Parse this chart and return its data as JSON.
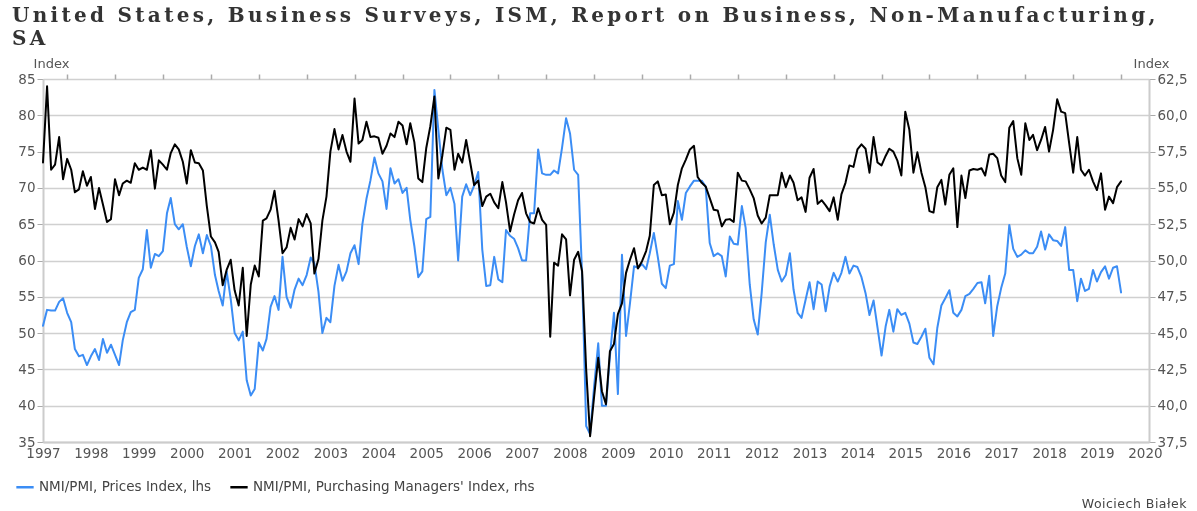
{
  "chart_data": {
    "type": "line",
    "title": "United States, Business Surveys, ISM, Report on Business, Non-Manufacturing, SA",
    "ylabel": "Index",
    "y2label": "Index",
    "annotations": [
      "Woiciech Białek"
    ],
    "x": [
      "1997-07",
      "1997-08",
      "1997-09",
      "1997-10",
      "1997-11",
      "1997-12",
      "1998-01",
      "1998-02",
      "1998-03",
      "1998-04",
      "1998-05",
      "1998-06",
      "1998-07",
      "1998-08",
      "1998-09",
      "1998-10",
      "1998-11",
      "1998-12",
      "1999-01",
      "1999-02",
      "1999-03",
      "1999-04",
      "1999-05",
      "1999-06",
      "1999-07",
      "1999-08",
      "1999-09",
      "1999-10",
      "1999-11",
      "1999-12",
      "2000-01",
      "2000-02",
      "2000-03",
      "2000-04",
      "2000-05",
      "2000-06",
      "2000-07",
      "2000-08",
      "2000-09",
      "2000-10",
      "2000-11",
      "2000-12",
      "2001-01",
      "2001-02",
      "2001-03",
      "2001-04",
      "2001-05",
      "2001-06",
      "2001-07",
      "2001-08",
      "2001-09",
      "2001-10",
      "2001-11",
      "2001-12",
      "2002-01",
      "2002-02",
      "2002-03",
      "2002-04",
      "2002-05",
      "2002-06",
      "2002-07",
      "2002-08",
      "2002-09",
      "2002-10",
      "2002-11",
      "2002-12",
      "2003-01",
      "2003-02",
      "2003-03",
      "2003-04",
      "2003-05",
      "2003-06",
      "2003-07",
      "2003-08",
      "2003-09",
      "2003-10",
      "2003-11",
      "2003-12",
      "2004-01",
      "2004-02",
      "2004-03",
      "2004-04",
      "2004-05",
      "2004-06",
      "2004-07",
      "2004-08",
      "2004-09",
      "2004-10",
      "2004-11",
      "2004-12",
      "2005-01",
      "2005-02",
      "2005-03",
      "2005-04",
      "2005-05",
      "2005-06",
      "2005-07",
      "2005-08",
      "2005-09",
      "2005-10",
      "2005-11",
      "2005-12",
      "2006-01",
      "2006-02",
      "2006-03",
      "2006-04",
      "2006-05",
      "2006-06",
      "2006-07",
      "2006-08",
      "2006-09",
      "2006-10",
      "2006-11",
      "2006-12",
      "2007-01",
      "2007-02",
      "2007-03",
      "2007-04",
      "2007-05",
      "2007-06",
      "2007-07",
      "2007-08",
      "2007-09",
      "2007-10",
      "2007-11",
      "2007-12",
      "2008-01",
      "2008-02",
      "2008-03",
      "2008-04",
      "2008-05",
      "2008-06",
      "2008-07",
      "2008-08",
      "2008-09",
      "2008-10",
      "2008-11",
      "2008-12",
      "2009-01",
      "2009-02",
      "2009-03",
      "2009-04",
      "2009-05",
      "2009-06",
      "2009-07",
      "2009-08",
      "2009-09",
      "2009-10",
      "2009-11",
      "2009-12",
      "2010-01",
      "2010-02",
      "2010-03",
      "2010-04",
      "2010-05",
      "2010-06",
      "2010-07",
      "2010-08",
      "2010-09",
      "2010-10",
      "2010-11",
      "2010-12",
      "2011-01",
      "2011-02",
      "2011-03",
      "2011-04",
      "2011-05",
      "2011-06",
      "2011-07",
      "2011-08",
      "2011-09",
      "2011-10",
      "2011-11",
      "2011-12",
      "2012-01",
      "2012-02",
      "2012-03",
      "2012-04",
      "2012-05",
      "2012-06",
      "2012-07",
      "2012-08",
      "2012-09",
      "2012-10",
      "2012-11",
      "2012-12",
      "2013-01",
      "2013-02",
      "2013-03",
      "2013-04",
      "2013-05",
      "2013-06",
      "2013-07",
      "2013-08",
      "2013-09",
      "2013-10",
      "2013-11",
      "2013-12",
      "2014-01",
      "2014-02",
      "2014-03",
      "2014-04",
      "2014-05",
      "2014-06",
      "2014-07",
      "2014-08",
      "2014-09",
      "2014-10",
      "2014-11",
      "2014-12",
      "2015-01",
      "2015-02",
      "2015-03",
      "2015-04",
      "2015-05",
      "2015-06",
      "2015-07",
      "2015-08",
      "2015-09",
      "2015-10",
      "2015-11",
      "2015-12",
      "2016-01",
      "2016-02",
      "2016-03",
      "2016-04",
      "2016-05",
      "2016-06",
      "2016-07",
      "2016-08",
      "2016-09",
      "2016-10",
      "2016-11",
      "2016-12",
      "2017-01",
      "2017-02",
      "2017-03",
      "2017-04",
      "2017-05",
      "2017-06",
      "2017-07",
      "2017-08",
      "2017-09",
      "2017-10",
      "2017-11",
      "2017-12",
      "2018-01",
      "2018-02",
      "2018-03",
      "2018-04",
      "2018-05",
      "2018-06",
      "2018-07",
      "2018-08",
      "2018-09",
      "2018-10",
      "2018-11",
      "2018-12",
      "2019-01",
      "2019-02",
      "2019-03",
      "2019-04",
      "2019-05",
      "2019-06",
      "2019-07",
      "2019-08",
      "2019-09",
      "2019-10",
      "2019-11",
      "2019-12",
      "2020-01"
    ],
    "series": [
      {
        "name": "NMI/PMI, Prices Index, lhs",
        "color": "#3b8df5",
        "values": [
          51,
          53.2,
          53.1,
          53.1,
          54.3,
          54.8,
          52.8,
          51.5,
          47.8,
          46.8,
          47.0,
          45.6,
          46.8,
          47.8,
          46.3,
          49.2,
          47.3,
          48.4,
          47,
          45.6,
          49,
          51.5,
          52.9,
          53.2,
          57.6,
          58.8,
          64.2,
          59,
          60.9,
          60.6,
          61.3,
          66.5,
          68.6,
          65,
          64.3,
          65,
          61.9,
          59.2,
          62,
          63.6,
          61,
          63.5,
          62,
          58,
          55.8,
          53.8,
          58.5,
          54.7,
          50,
          49,
          50.2,
          43.5,
          41.4,
          42.3,
          48.7,
          47.6,
          49.2,
          53.6,
          55.1,
          53.2,
          60.5,
          55,
          53.5,
          56,
          57.5,
          56.6,
          58,
          60.4,
          59.6,
          55.7,
          50,
          52.1,
          51.5,
          56.5,
          59.4,
          57.2,
          58.5,
          61,
          62.1,
          59.5,
          65,
          68.5,
          71,
          74.2,
          72,
          70.9,
          67.1,
          72.7,
          70.6,
          71.2,
          69.3,
          70,
          65.6,
          62,
          57.7,
          58.5,
          65.7,
          66,
          83.5,
          78,
          72.5,
          69,
          70,
          67.8,
          60,
          68.8,
          70.5,
          69,
          70.3,
          72.2,
          61.5,
          56.5,
          56.6,
          60.5,
          57.4,
          57,
          64.2,
          63.4,
          63,
          61.7,
          60,
          60,
          66.5,
          66.5,
          75.3,
          72,
          71.8,
          71.8,
          72.4,
          72,
          75.5,
          79.6,
          77.5,
          72.5,
          71.8,
          58,
          37.2,
          36.1,
          42.7,
          48.6,
          40,
          40,
          46.8,
          52.8,
          41.6,
          60.8,
          49.6,
          54.1,
          59.2,
          59,
          59.5,
          58.8,
          61,
          63.8,
          60.5,
          56.8,
          56.2,
          59.3,
          59.5,
          68.2,
          65.6,
          69.3,
          70.2,
          71,
          71,
          71,
          70.2,
          62.4,
          60.6,
          61,
          60.6,
          57.8,
          63.3,
          62.3,
          62.2,
          67.5,
          64.5,
          56.7,
          51.9,
          49.8,
          55.5,
          62.5,
          66.3,
          62.2,
          58.7,
          57.1,
          58,
          61,
          56,
          52.8,
          52.1,
          54.6,
          57,
          53.3,
          57.1,
          56.7,
          53,
          56.4,
          58.3,
          57.1,
          58.3,
          60.5,
          58.2,
          59.3,
          59.1,
          57.7,
          55.5,
          52.5,
          54.5,
          50.8,
          46.9,
          50.9,
          53.2,
          50.2,
          53.3,
          52.5,
          52.8,
          51.3,
          48.7,
          48.5,
          49.5,
          50.6,
          46.6,
          45.7,
          50.7,
          53.8,
          54.8,
          55.9,
          52.8,
          52.3,
          53.2,
          55.1,
          55.4,
          56.1,
          56.9,
          57,
          54.1,
          57.9,
          49.6,
          53.7,
          56.2,
          58.2,
          64.9,
          61.6,
          60.5,
          60.8,
          61.4,
          61,
          61,
          61.9,
          64,
          61.5,
          63.6,
          62.8,
          62.7,
          62,
          64.6,
          58.7,
          58.7,
          54.4,
          57.5,
          55.8,
          56.1,
          58.7,
          57.1,
          58.4,
          59.2,
          57.5,
          59,
          59.2,
          55.6
        ]
      },
      {
        "name": "NMI/PMI, Purchasing Managers' Index, rhs",
        "color": "#000000",
        "axis": "y2",
        "values": [
          56.75,
          62,
          56.25,
          56.6,
          58.5,
          55.6,
          57,
          56.25,
          54.7,
          54.9,
          56.15,
          55.15,
          55.75,
          53.55,
          55,
          53.85,
          52.65,
          52.85,
          55.6,
          54.5,
          55.3,
          55.5,
          55.35,
          56.7,
          56.25,
          56.4,
          56.25,
          57.6,
          54.95,
          56.9,
          56.6,
          56.25,
          57.4,
          58,
          57.65,
          56.8,
          55.3,
          57.6,
          56.75,
          56.7,
          56.2,
          53.75,
          51.65,
          51.25,
          50.6,
          48.3,
          49.35,
          50.05,
          47.95,
          46.9,
          49.5,
          44.8,
          48.35,
          49.65,
          48.9,
          52.75,
          52.9,
          53.5,
          54.8,
          52.75,
          50.5,
          50.9,
          52.25,
          51.45,
          52.85,
          52.35,
          53.2,
          52.55,
          49.1,
          50.1,
          52.75,
          54.4,
          57.5,
          59.05,
          57.65,
          58.65,
          57.5,
          56.8,
          61.15,
          58.05,
          58.3,
          59.55,
          58.5,
          58.55,
          58.45,
          57.35,
          57.9,
          58.75,
          58.5,
          59.55,
          59.3,
          58,
          59.45,
          58.15,
          55.65,
          55.4,
          57.75,
          59.25,
          61.3,
          55.65,
          57.25,
          59.15,
          59,
          56.25,
          57.35,
          56.75,
          58.3,
          56.75,
          55.2,
          55.5,
          53.75,
          54.4,
          54.6,
          54,
          53.6,
          55.4,
          54,
          52,
          53.15,
          54.15,
          54.65,
          53.25,
          52.65,
          52.55,
          53.6,
          52.8,
          52.45,
          44.75,
          49.85,
          49.65,
          51.8,
          51.45,
          47.6,
          50.05,
          50.6,
          49.25,
          42.5,
          37.9,
          40.65,
          43.3,
          41,
          40.1,
          43.75,
          44.25,
          46.3,
          47.05,
          49.15,
          50.05,
          50.85,
          49.45,
          49.95,
          50.65,
          51.7,
          55.2,
          55.45,
          54.5,
          54.55,
          52.5,
          53.3,
          55.2,
          56.35,
          56.95,
          57.65,
          57.9,
          55.75,
          55.35,
          55.1,
          54.3,
          53.5,
          53.45,
          52.35,
          52.8,
          52.85,
          52.65,
          56.05,
          55.5,
          55.45,
          54.9,
          54.3,
          53.1,
          52.55,
          52.95,
          54.5,
          54.5,
          54.5,
          56.05,
          55.05,
          55.85,
          55.35,
          54.15,
          54.35,
          53.35,
          55.7,
          56.3,
          53.9,
          54.15,
          53.8,
          53.4,
          54.35,
          52.8,
          54.55,
          55.35,
          56.55,
          56.45,
          57.65,
          58,
          57.7,
          56.05,
          58.5,
          56.75,
          56.55,
          57.2,
          57.7,
          57.5,
          56.9,
          55.85,
          60.25,
          59,
          56.05,
          57.45,
          56.05,
          55.05,
          53.4,
          53.3,
          55.05,
          55.55,
          53.85,
          55.9,
          56.35,
          52.3,
          55.85,
          54.3,
          56.2,
          56.3,
          56.25,
          56.35,
          55.85,
          57.3,
          57.35,
          57.05,
          55.85,
          55.4,
          59.15,
          59.6,
          57.05,
          55.9,
          59.45,
          58.3,
          58.65,
          57.6,
          58.3,
          59.2,
          57.5,
          59,
          61.1,
          60.25,
          60.15,
          58.1,
          56.05,
          58.5,
          56.25,
          55.85,
          56.25,
          55.45,
          54.85,
          56,
          53.5,
          54.4,
          53.95,
          55.05,
          55.45
        ]
      }
    ],
    "xlim": [
      "1997-07",
      "2020-08"
    ],
    "xticks": [
      {
        "value": "1997-07",
        "label": "1997"
      },
      {
        "value": "1998-01",
        "label": null
      },
      {
        "value": "1998-07",
        "label": "1998"
      },
      {
        "value": "1999-01",
        "label": null
      },
      {
        "value": "1999-07",
        "label": "1999"
      },
      {
        "value": "2000-01",
        "label": null
      },
      {
        "value": "2000-07",
        "label": "2000"
      },
      {
        "value": "2001-01",
        "label": null
      },
      {
        "value": "2001-07",
        "label": "2001"
      },
      {
        "value": "2002-01",
        "label": null
      },
      {
        "value": "2002-07",
        "label": "2002"
      },
      {
        "value": "2003-01",
        "label": null
      },
      {
        "value": "2003-07",
        "label": "2003"
      },
      {
        "value": "2004-01",
        "label": null
      },
      {
        "value": "2004-07",
        "label": "2004"
      },
      {
        "value": "2005-01",
        "label": null
      },
      {
        "value": "2005-07",
        "label": "2005"
      },
      {
        "value": "2006-01",
        "label": null
      },
      {
        "value": "2006-07",
        "label": "2006"
      },
      {
        "value": "2007-01",
        "label": null
      },
      {
        "value": "2007-07",
        "label": "2007"
      },
      {
        "value": "2008-01",
        "label": null
      },
      {
        "value": "2008-07",
        "label": "2008"
      },
      {
        "value": "2009-01",
        "label": null
      },
      {
        "value": "2009-07",
        "label": "2009"
      },
      {
        "value": "2010-01",
        "label": null
      },
      {
        "value": "2010-07",
        "label": "2010"
      },
      {
        "value": "2011-01",
        "label": null
      },
      {
        "value": "2011-07",
        "label": "2011"
      },
      {
        "value": "2012-01",
        "label": null
      },
      {
        "value": "2012-07",
        "label": "2012"
      },
      {
        "value": "2013-01",
        "label": null
      },
      {
        "value": "2013-07",
        "label": "2013"
      },
      {
        "value": "2014-01",
        "label": null
      },
      {
        "value": "2014-07",
        "label": "2014"
      },
      {
        "value": "2015-01",
        "label": null
      },
      {
        "value": "2015-07",
        "label": "2015"
      },
      {
        "value": "2016-01",
        "label": null
      },
      {
        "value": "2016-07",
        "label": "2016"
      },
      {
        "value": "2017-01",
        "label": null
      },
      {
        "value": "2017-07",
        "label": "2017"
      },
      {
        "value": "2018-01",
        "label": null
      },
      {
        "value": "2018-07",
        "label": "2018"
      },
      {
        "value": "2019-01",
        "label": null
      },
      {
        "value": "2019-07",
        "label": "2019"
      },
      {
        "value": "2020-01",
        "label": null
      },
      {
        "value": "2020-07",
        "label": "2020"
      }
    ],
    "ylim": [
      35,
      85
    ],
    "yticks": [
      35,
      40,
      45,
      50,
      55,
      60,
      65,
      70,
      75,
      80,
      85
    ],
    "y2lim": [
      37.5,
      62.5
    ],
    "y2ticks": [
      {
        "value": 37.5,
        "label": "37,5"
      },
      {
        "value": 40,
        "label": "40,0"
      },
      {
        "value": 42.5,
        "label": "42,5"
      },
      {
        "value": 45,
        "label": "45,0"
      },
      {
        "value": 47.5,
        "label": "47,5"
      },
      {
        "value": 50,
        "label": "50,0"
      },
      {
        "value": 52.5,
        "label": "52,5"
      },
      {
        "value": 55,
        "label": "55,0"
      },
      {
        "value": 57.5,
        "label": "57,5"
      },
      {
        "value": 60,
        "label": "60,0"
      },
      {
        "value": 62.5,
        "label": "62,5"
      }
    ],
    "grid": "y",
    "legend": "bottom"
  }
}
